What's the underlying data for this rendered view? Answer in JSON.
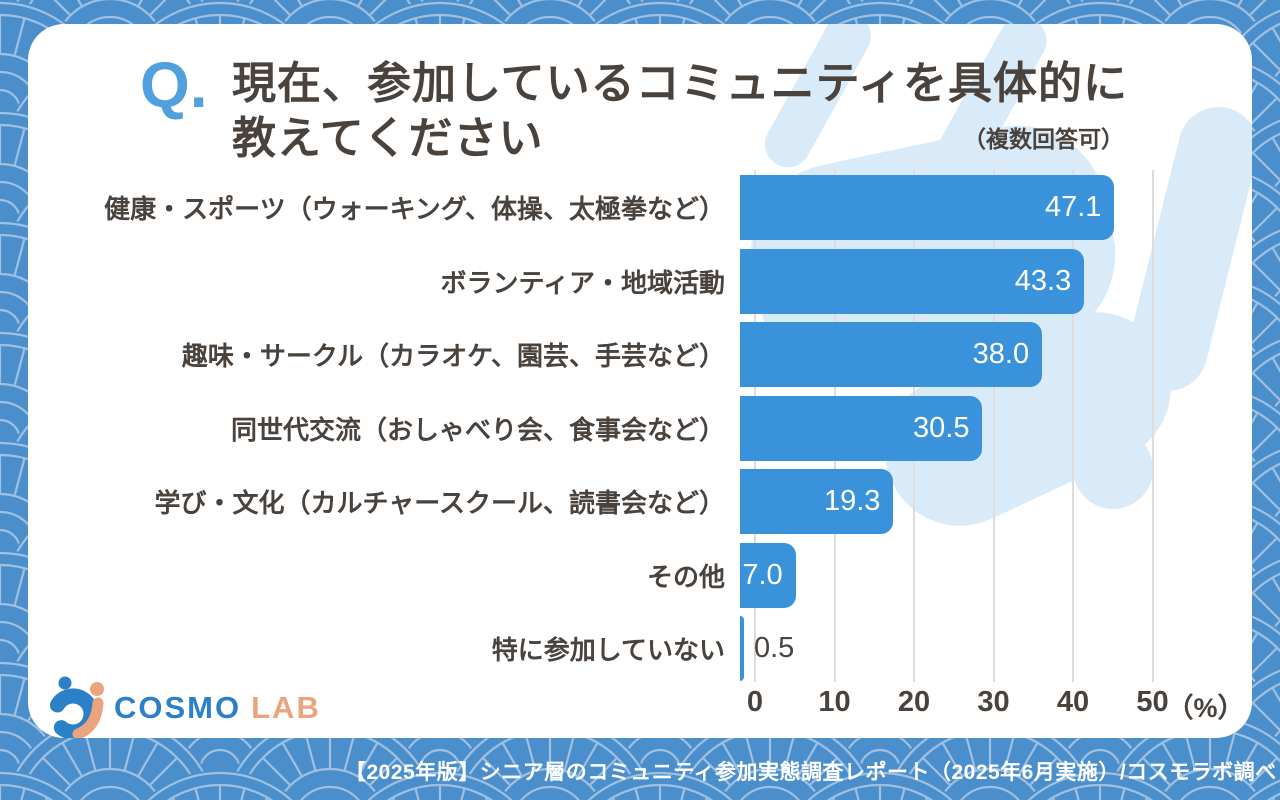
{
  "title": {
    "q_mark": "Q.",
    "line1": "現在、参加しているコミュニティを具体的に",
    "line2": "教えてください",
    "note": "（複数回答可）"
  },
  "chart_data": {
    "type": "bar",
    "orientation": "horizontal",
    "title": "現在、参加しているコミュニティを具体的に教えてください（複数回答可）",
    "categories": [
      "健康・スポーツ（ウォーキング、体操、太極拳など）",
      "ボランティア・地域活動",
      "趣味・サークル（カラオケ、園芸、手芸など）",
      "同世代交流（おしゃべり会、食事会など）",
      "学び・文化（カルチャースクール、読書会など）",
      "その他",
      "特に参加していない"
    ],
    "values": [
      47.1,
      43.3,
      38.0,
      30.5,
      19.3,
      7.0,
      0.5
    ],
    "value_labels": [
      "47.1",
      "43.3",
      "38.0",
      "30.5",
      "19.3",
      "7.0",
      "0.5"
    ],
    "x_ticks": [
      0,
      10,
      20,
      30,
      40,
      50
    ],
    "x_unit": "（%）",
    "xlim": [
      0,
      50
    ],
    "grid": true,
    "legend": "none",
    "bar_color": "#3A93DA"
  },
  "logo": {
    "brand_cosmo": "COSMO",
    "brand_lab": "LAB"
  },
  "footer": {
    "text": "【2025年版】シニア層のコミュニティ参加実態調査レポート（2025年6月実施）/コスモラボ調べ"
  },
  "colors": {
    "bar": "#3A93DA",
    "accent_blue": "#4FA0DC",
    "text_dark": "#4A423C",
    "pattern_bg": "#4A8FCB",
    "pattern_line": "#9FC0E2",
    "watermark": "#D9EAF8",
    "card_bg": "#FFFFFF",
    "logo_blue": "#2B80C8",
    "logo_peach": "#EBA57E",
    "value_text": "#FFFFFF"
  }
}
